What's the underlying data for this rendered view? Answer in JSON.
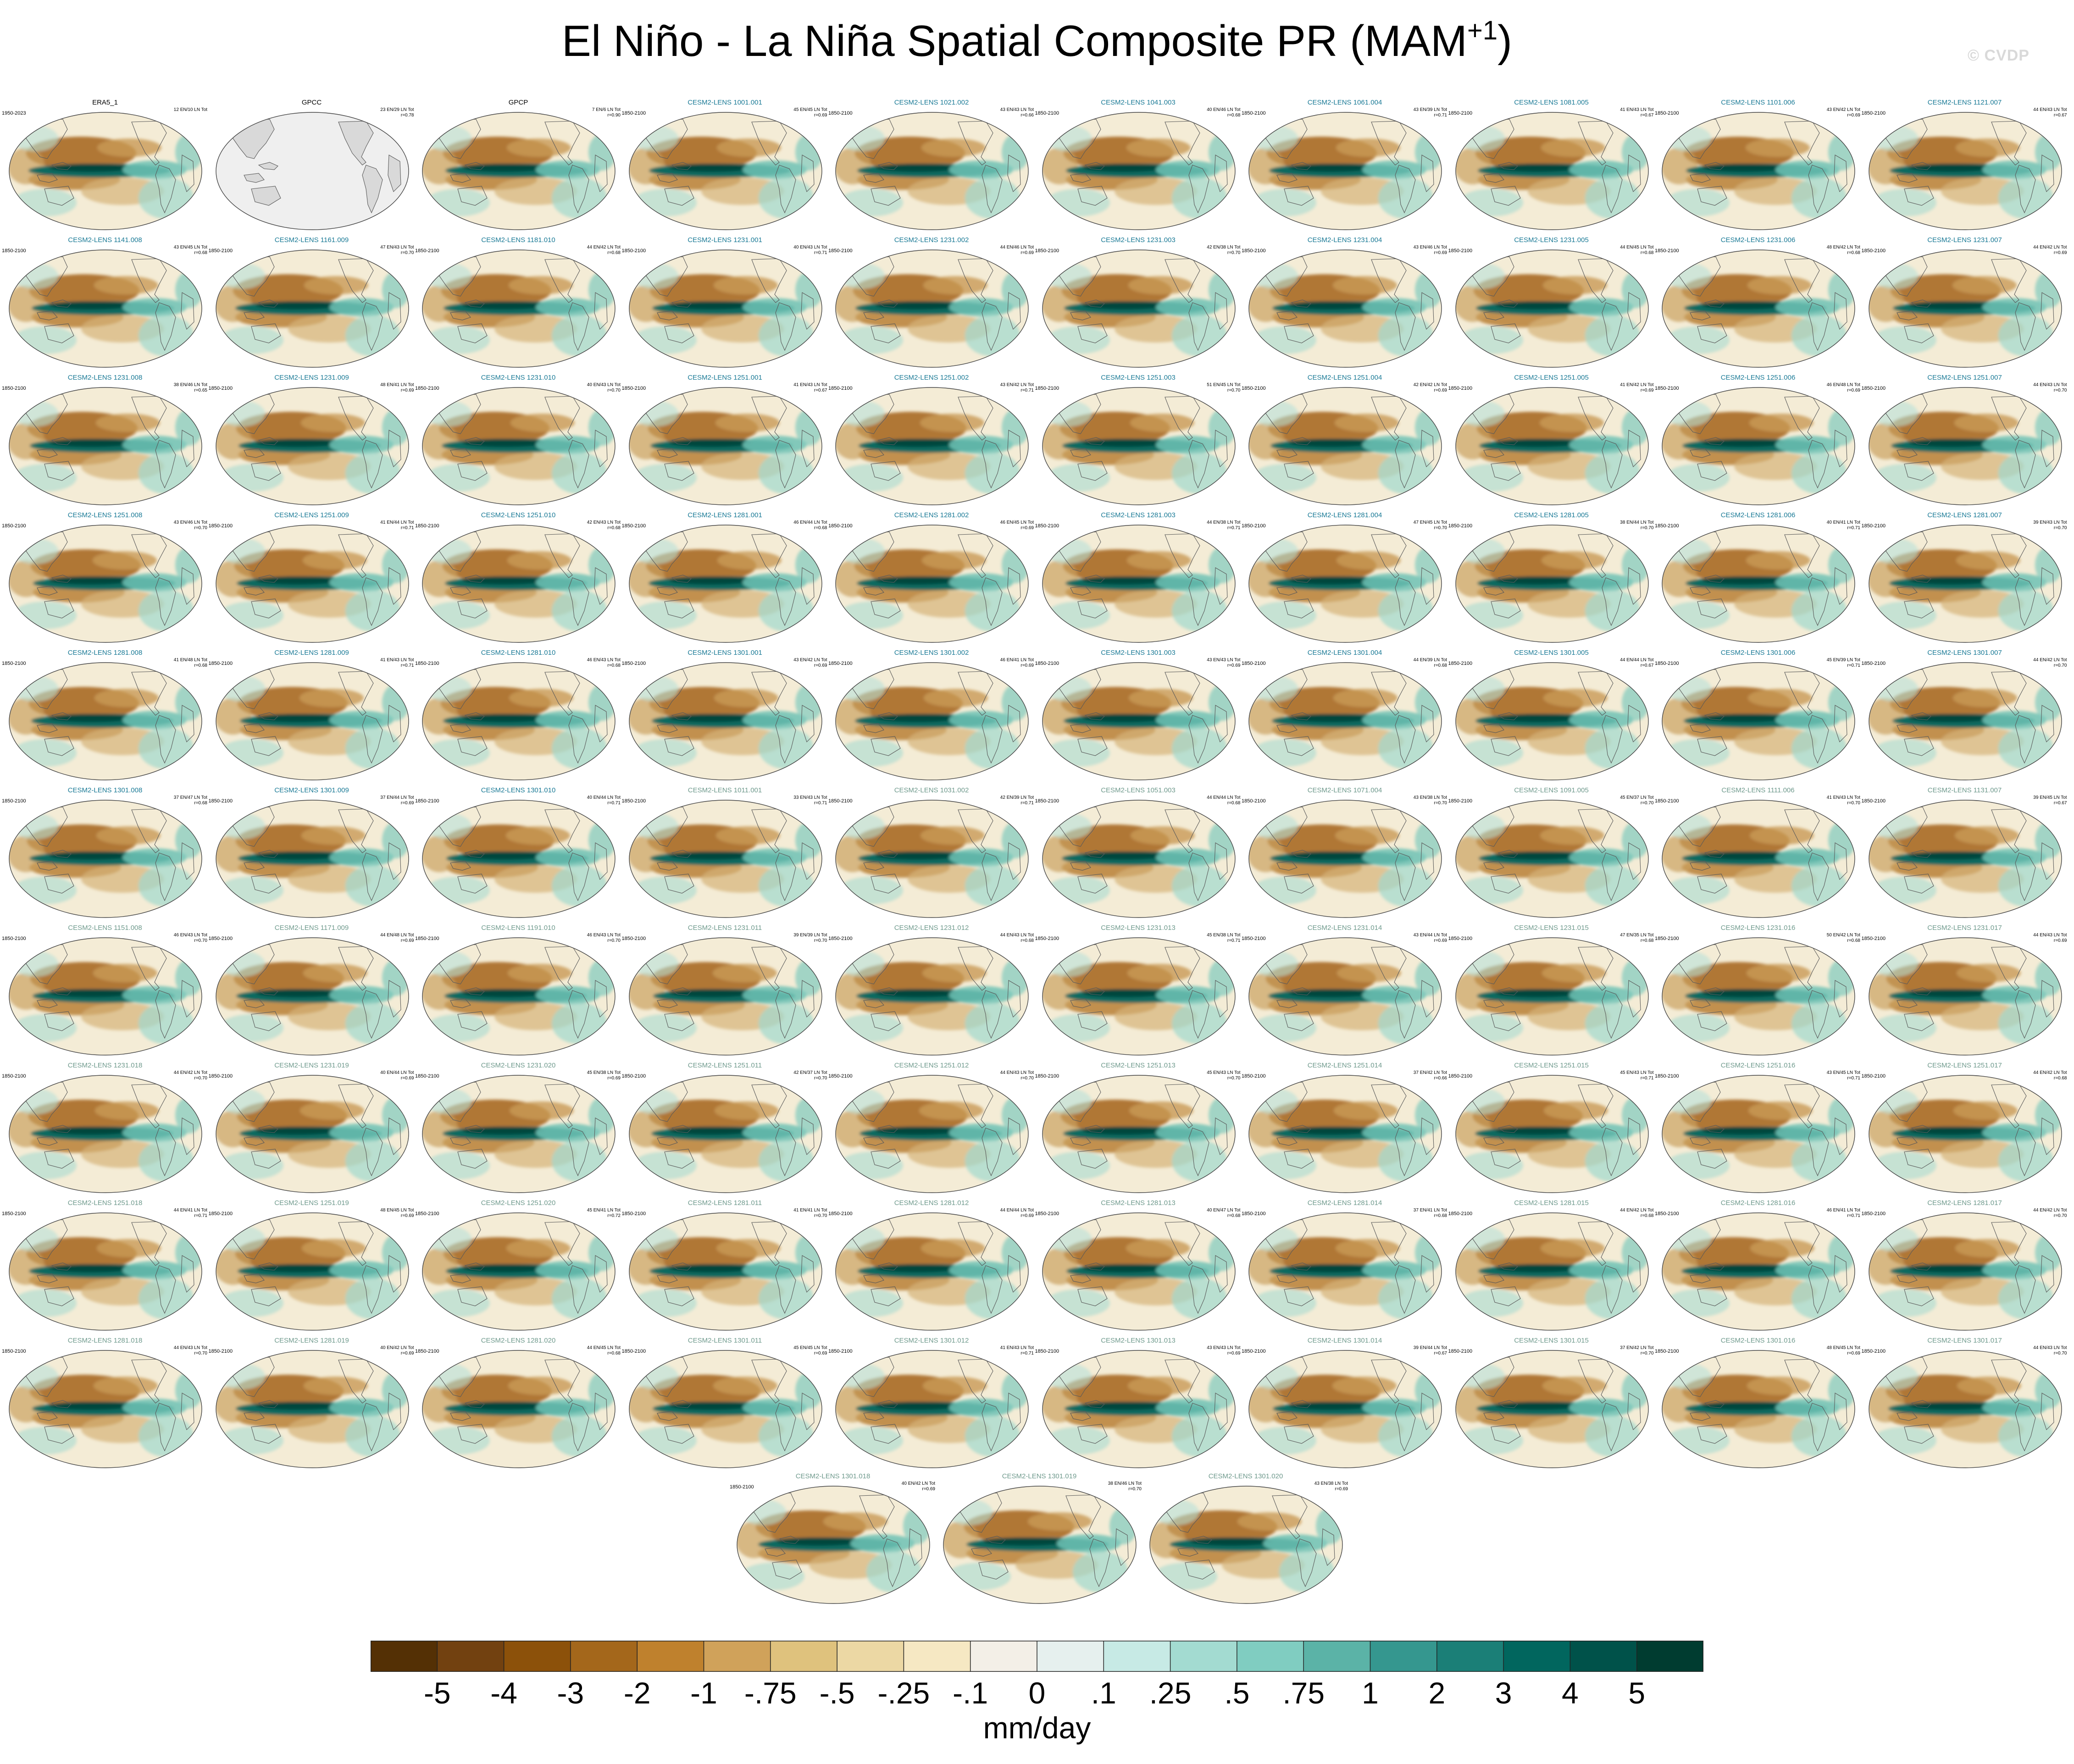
{
  "title": "El Niño - La Niña Spatial Composite PR (MAM",
  "title_superscript": "+1",
  "title_close": ")",
  "watermark": "© CVDP",
  "colors": {
    "ref_label": "#000000",
    "lens1_label": "#1a7a96",
    "lens2_label": "#6f9a8d",
    "land": "#dcdcdc",
    "coast": "#5a5a5a"
  },
  "panels": [
    {
      "name": "ERA5_1",
      "years": "1950-2023",
      "stats": "12 EN/10 LN Tot",
      "r": "",
      "group": "ref"
    },
    {
      "name": "GPCC",
      "years": "",
      "stats": "23 EN/29 LN Tot",
      "r": "r=0.78",
      "group": "ref",
      "empty": true
    },
    {
      "name": "GPCP",
      "years": "",
      "stats": "7 EN/6 LN Tot",
      "r": "r=0.90",
      "group": "ref"
    },
    {
      "name": "CESM2-LENS 1001.001",
      "years": "1850-2100",
      "stats": "45 EN/45 LN Tot",
      "r": "r=0.69",
      "group": "lens1"
    },
    {
      "name": "CESM2-LENS 1021.002",
      "years": "1850-2100",
      "stats": "43 EN/43 LN Tot",
      "r": "r=0.66",
      "group": "lens1"
    },
    {
      "name": "CESM2-LENS 1041.003",
      "years": "1850-2100",
      "stats": "40 EN/46 LN Tot",
      "r": "r=0.68",
      "group": "lens1"
    },
    {
      "name": "CESM2-LENS 1061.004",
      "years": "1850-2100",
      "stats": "43 EN/39 LN Tot",
      "r": "r=0.71",
      "group": "lens1"
    },
    {
      "name": "CESM2-LENS 1081.005",
      "years": "1850-2100",
      "stats": "41 EN/43 LN Tot",
      "r": "r=0.67",
      "group": "lens1"
    },
    {
      "name": "CESM2-LENS 1101.006",
      "years": "1850-2100",
      "stats": "43 EN/42 LN Tot",
      "r": "r=0.69",
      "group": "lens1"
    },
    {
      "name": "CESM2-LENS 1121.007",
      "years": "1850-2100",
      "stats": "44 EN/43 LN Tot",
      "r": "r=0.67",
      "group": "lens1"
    },
    {
      "name": "CESM2-LENS 1141.008",
      "years": "1850-2100",
      "stats": "43 EN/45 LN Tot",
      "r": "r=0.68",
      "group": "lens1"
    },
    {
      "name": "CESM2-LENS 1161.009",
      "years": "1850-2100",
      "stats": "47 EN/43 LN Tot",
      "r": "r=0.70",
      "group": "lens1"
    },
    {
      "name": "CESM2-LENS 1181.010",
      "years": "1850-2100",
      "stats": "44 EN/42 LN Tot",
      "r": "r=0.68",
      "group": "lens1"
    },
    {
      "name": "CESM2-LENS 1231.001",
      "years": "1850-2100",
      "stats": "40 EN/43 LN Tot",
      "r": "r=0.71",
      "group": "lens1"
    },
    {
      "name": "CESM2-LENS 1231.002",
      "years": "1850-2100",
      "stats": "44 EN/46 LN Tot",
      "r": "r=0.69",
      "group": "lens1"
    },
    {
      "name": "CESM2-LENS 1231.003",
      "years": "1850-2100",
      "stats": "42 EN/38 LN Tot",
      "r": "r=0.70",
      "group": "lens1"
    },
    {
      "name": "CESM2-LENS 1231.004",
      "years": "1850-2100",
      "stats": "43 EN/46 LN Tot",
      "r": "r=0.69",
      "group": "lens1"
    },
    {
      "name": "CESM2-LENS 1231.005",
      "years": "1850-2100",
      "stats": "44 EN/45 LN Tot",
      "r": "r=0.68",
      "group": "lens1"
    },
    {
      "name": "CESM2-LENS 1231.006",
      "years": "1850-2100",
      "stats": "48 EN/42 LN Tot",
      "r": "r=0.68",
      "group": "lens1"
    },
    {
      "name": "CESM2-LENS 1231.007",
      "years": "1850-2100",
      "stats": "44 EN/42 LN Tot",
      "r": "r=0.69",
      "group": "lens1"
    },
    {
      "name": "CESM2-LENS 1231.008",
      "years": "1850-2100",
      "stats": "38 EN/46 LN Tot",
      "r": "r=0.65",
      "group": "lens1"
    },
    {
      "name": "CESM2-LENS 1231.009",
      "years": "1850-2100",
      "stats": "48 EN/41 LN Tot",
      "r": "r=0.69",
      "group": "lens1"
    },
    {
      "name": "CESM2-LENS 1231.010",
      "years": "1850-2100",
      "stats": "40 EN/43 LN Tot",
      "r": "r=0.70",
      "group": "lens1"
    },
    {
      "name": "CESM2-LENS 1251.001",
      "years": "1850-2100",
      "stats": "41 EN/43 LN Tot",
      "r": "r=0.67",
      "group": "lens1"
    },
    {
      "name": "CESM2-LENS 1251.002",
      "years": "1850-2100",
      "stats": "43 EN/42 LN Tot",
      "r": "r=0.71",
      "group": "lens1"
    },
    {
      "name": "CESM2-LENS 1251.003",
      "years": "1850-2100",
      "stats": "51 EN/45 LN Tot",
      "r": "r=0.70",
      "group": "lens1"
    },
    {
      "name": "CESM2-LENS 1251.004",
      "years": "1850-2100",
      "stats": "42 EN/42 LN Tot",
      "r": "r=0.69",
      "group": "lens1"
    },
    {
      "name": "CESM2-LENS 1251.005",
      "years": "1850-2100",
      "stats": "41 EN/42 LN Tot",
      "r": "r=0.69",
      "group": "lens1"
    },
    {
      "name": "CESM2-LENS 1251.006",
      "years": "1850-2100",
      "stats": "46 EN/48 LN Tot",
      "r": "r=0.69",
      "group": "lens1"
    },
    {
      "name": "CESM2-LENS 1251.007",
      "years": "1850-2100",
      "stats": "44 EN/43 LN Tot",
      "r": "r=0.70",
      "group": "lens1"
    },
    {
      "name": "CESM2-LENS 1251.008",
      "years": "1850-2100",
      "stats": "43 EN/46 LN Tot",
      "r": "r=0.70",
      "group": "lens1"
    },
    {
      "name": "CESM2-LENS 1251.009",
      "years": "1850-2100",
      "stats": "41 EN/44 LN Tot",
      "r": "r=0.71",
      "group": "lens1"
    },
    {
      "name": "CESM2-LENS 1251.010",
      "years": "1850-2100",
      "stats": "42 EN/43 LN Tot",
      "r": "r=0.68",
      "group": "lens1"
    },
    {
      "name": "CESM2-LENS 1281.001",
      "years": "1850-2100",
      "stats": "46 EN/44 LN Tot",
      "r": "r=0.68",
      "group": "lens1"
    },
    {
      "name": "CESM2-LENS 1281.002",
      "years": "1850-2100",
      "stats": "46 EN/45 LN Tot",
      "r": "r=0.69",
      "group": "lens1"
    },
    {
      "name": "CESM2-LENS 1281.003",
      "years": "1850-2100",
      "stats": "44 EN/38 LN Tot",
      "r": "r=0.71",
      "group": "lens1"
    },
    {
      "name": "CESM2-LENS 1281.004",
      "years": "1850-2100",
      "stats": "47 EN/45 LN Tot",
      "r": "r=0.70",
      "group": "lens1"
    },
    {
      "name": "CESM2-LENS 1281.005",
      "years": "1850-2100",
      "stats": "38 EN/44 LN Tot",
      "r": "r=0.70",
      "group": "lens1"
    },
    {
      "name": "CESM2-LENS 1281.006",
      "years": "1850-2100",
      "stats": "40 EN/41 LN Tot",
      "r": "r=0.71",
      "group": "lens1"
    },
    {
      "name": "CESM2-LENS 1281.007",
      "years": "1850-2100",
      "stats": "39 EN/43 LN Tot",
      "r": "r=0.70",
      "group": "lens1"
    },
    {
      "name": "CESM2-LENS 1281.008",
      "years": "1850-2100",
      "stats": "41 EN/48 LN Tot",
      "r": "r=0.68",
      "group": "lens1"
    },
    {
      "name": "CESM2-LENS 1281.009",
      "years": "1850-2100",
      "stats": "41 EN/43 LN Tot",
      "r": "r=0.71",
      "group": "lens1"
    },
    {
      "name": "CESM2-LENS 1281.010",
      "years": "1850-2100",
      "stats": "46 EN/43 LN Tot",
      "r": "r=0.68",
      "group": "lens1"
    },
    {
      "name": "CESM2-LENS 1301.001",
      "years": "1850-2100",
      "stats": "43 EN/42 LN Tot",
      "r": "r=0.69",
      "group": "lens1"
    },
    {
      "name": "CESM2-LENS 1301.002",
      "years": "1850-2100",
      "stats": "46 EN/41 LN Tot",
      "r": "r=0.69",
      "group": "lens1"
    },
    {
      "name": "CESM2-LENS 1301.003",
      "years": "1850-2100",
      "stats": "43 EN/43 LN Tot",
      "r": "r=0.69",
      "group": "lens1"
    },
    {
      "name": "CESM2-LENS 1301.004",
      "years": "1850-2100",
      "stats": "44 EN/39 LN Tot",
      "r": "r=0.68",
      "group": "lens1"
    },
    {
      "name": "CESM2-LENS 1301.005",
      "years": "1850-2100",
      "stats": "44 EN/44 LN Tot",
      "r": "r=0.67",
      "group": "lens1"
    },
    {
      "name": "CESM2-LENS 1301.006",
      "years": "1850-2100",
      "stats": "45 EN/39 LN Tot",
      "r": "r=0.71",
      "group": "lens1"
    },
    {
      "name": "CESM2-LENS 1301.007",
      "years": "1850-2100",
      "stats": "44 EN/42 LN Tot",
      "r": "r=0.70",
      "group": "lens1"
    },
    {
      "name": "CESM2-LENS 1301.008",
      "years": "1850-2100",
      "stats": "37 EN/47 LN Tot",
      "r": "r=0.68",
      "group": "lens1"
    },
    {
      "name": "CESM2-LENS 1301.009",
      "years": "1850-2100",
      "stats": "37 EN/44 LN Tot",
      "r": "r=0.69",
      "group": "lens1"
    },
    {
      "name": "CESM2-LENS 1301.010",
      "years": "1850-2100",
      "stats": "40 EN/44 LN Tot",
      "r": "r=0.71",
      "group": "lens1"
    },
    {
      "name": "CESM2-LENS 1011.001",
      "years": "1850-2100",
      "stats": "33 EN/43 LN Tot",
      "r": "r=0.71",
      "group": "lens2"
    },
    {
      "name": "CESM2-LENS 1031.002",
      "years": "1850-2100",
      "stats": "42 EN/39 LN Tot",
      "r": "r=0.71",
      "group": "lens2"
    },
    {
      "name": "CESM2-LENS 1051.003",
      "years": "1850-2100",
      "stats": "44 EN/44 LN Tot",
      "r": "r=0.68",
      "group": "lens2"
    },
    {
      "name": "CESM2-LENS 1071.004",
      "years": "1850-2100",
      "stats": "43 EN/38 LN Tot",
      "r": "r=0.70",
      "group": "lens2"
    },
    {
      "name": "CESM2-LENS 1091.005",
      "years": "1850-2100",
      "stats": "45 EN/37 LN Tot",
      "r": "r=0.70",
      "group": "lens2"
    },
    {
      "name": "CESM2-LENS 1111.006",
      "years": "1850-2100",
      "stats": "41 EN/43 LN Tot",
      "r": "r=0.70",
      "group": "lens2"
    },
    {
      "name": "CESM2-LENS 1131.007",
      "years": "1850-2100",
      "stats": "39 EN/45 LN Tot",
      "r": "r=0.67",
      "group": "lens2"
    },
    {
      "name": "CESM2-LENS 1151.008",
      "years": "1850-2100",
      "stats": "46 EN/43 LN Tot",
      "r": "r=0.70",
      "group": "lens2"
    },
    {
      "name": "CESM2-LENS 1171.009",
      "years": "1850-2100",
      "stats": "44 EN/48 LN Tot",
      "r": "r=0.69",
      "group": "lens2"
    },
    {
      "name": "CESM2-LENS 1191.010",
      "years": "1850-2100",
      "stats": "46 EN/43 LN Tot",
      "r": "r=0.70",
      "group": "lens2"
    },
    {
      "name": "CESM2-LENS 1231.011",
      "years": "1850-2100",
      "stats": "39 EN/39 LN Tot",
      "r": "r=0.70",
      "group": "lens2"
    },
    {
      "name": "CESM2-LENS 1231.012",
      "years": "1850-2100",
      "stats": "44 EN/43 LN Tot",
      "r": "r=0.68",
      "group": "lens2"
    },
    {
      "name": "CESM2-LENS 1231.013",
      "years": "1850-2100",
      "stats": "45 EN/38 LN Tot",
      "r": "r=0.71",
      "group": "lens2"
    },
    {
      "name": "CESM2-LENS 1231.014",
      "years": "1850-2100",
      "stats": "43 EN/44 LN Tot",
      "r": "r=0.69",
      "group": "lens2"
    },
    {
      "name": "CESM2-LENS 1231.015",
      "years": "1850-2100",
      "stats": "47 EN/35 LN Tot",
      "r": "r=0.68",
      "group": "lens2"
    },
    {
      "name": "CESM2-LENS 1231.016",
      "years": "1850-2100",
      "stats": "50 EN/42 LN Tot",
      "r": "r=0.68",
      "group": "lens2"
    },
    {
      "name": "CESM2-LENS 1231.017",
      "years": "1850-2100",
      "stats": "44 EN/43 LN Tot",
      "r": "r=0.69",
      "group": "lens2"
    },
    {
      "name": "CESM2-LENS 1231.018",
      "years": "1850-2100",
      "stats": "44 EN/42 LN Tot",
      "r": "r=0.70",
      "group": "lens2"
    },
    {
      "name": "CESM2-LENS 1231.019",
      "years": "1850-2100",
      "stats": "40 EN/44 LN Tot",
      "r": "r=0.69",
      "group": "lens2"
    },
    {
      "name": "CESM2-LENS 1231.020",
      "years": "1850-2100",
      "stats": "45 EN/38 LN Tot",
      "r": "r=0.69",
      "group": "lens2"
    },
    {
      "name": "CESM2-LENS 1251.011",
      "years": "1850-2100",
      "stats": "42 EN/37 LN Tot",
      "r": "r=0.70",
      "group": "lens2"
    },
    {
      "name": "CESM2-LENS 1251.012",
      "years": "1850-2100",
      "stats": "44 EN/43 LN Tot",
      "r": "r=0.70",
      "group": "lens2"
    },
    {
      "name": "CESM2-LENS 1251.013",
      "years": "1850-2100",
      "stats": "45 EN/43 LN Tot",
      "r": "r=0.70",
      "group": "lens2"
    },
    {
      "name": "CESM2-LENS 1251.014",
      "years": "1850-2100",
      "stats": "37 EN/42 LN Tot",
      "r": "r=0.66",
      "group": "lens2"
    },
    {
      "name": "CESM2-LENS 1251.015",
      "years": "1850-2100",
      "stats": "45 EN/43 LN Tot",
      "r": "r=0.71",
      "group": "lens2"
    },
    {
      "name": "CESM2-LENS 1251.016",
      "years": "1850-2100",
      "stats": "43 EN/45 LN Tot",
      "r": "r=0.71",
      "group": "lens2"
    },
    {
      "name": "CESM2-LENS 1251.017",
      "years": "1850-2100",
      "stats": "44 EN/42 LN Tot",
      "r": "r=0.68",
      "group": "lens2"
    },
    {
      "name": "CESM2-LENS 1251.018",
      "years": "1850-2100",
      "stats": "44 EN/41 LN Tot",
      "r": "r=0.71",
      "group": "lens2"
    },
    {
      "name": "CESM2-LENS 1251.019",
      "years": "1850-2100",
      "stats": "48 EN/45 LN Tot",
      "r": "r=0.69",
      "group": "lens2"
    },
    {
      "name": "CESM2-LENS 1251.020",
      "years": "1850-2100",
      "stats": "45 EN/41 LN Tot",
      "r": "r=0.72",
      "group": "lens2"
    },
    {
      "name": "CESM2-LENS 1281.011",
      "years": "1850-2100",
      "stats": "41 EN/41 LN Tot",
      "r": "r=0.70",
      "group": "lens2"
    },
    {
      "name": "CESM2-LENS 1281.012",
      "years": "1850-2100",
      "stats": "44 EN/44 LN Tot",
      "r": "r=0.69",
      "group": "lens2"
    },
    {
      "name": "CESM2-LENS 1281.013",
      "years": "1850-2100",
      "stats": "40 EN/47 LN Tot",
      "r": "r=0.68",
      "group": "lens2"
    },
    {
      "name": "CESM2-LENS 1281.014",
      "years": "1850-2100",
      "stats": "37 EN/41 LN Tot",
      "r": "r=0.68",
      "group": "lens2"
    },
    {
      "name": "CESM2-LENS 1281.015",
      "years": "1850-2100",
      "stats": "44 EN/42 LN Tot",
      "r": "r=0.68",
      "group": "lens2"
    },
    {
      "name": "CESM2-LENS 1281.016",
      "years": "1850-2100",
      "stats": "46 EN/41 LN Tot",
      "r": "r=0.71",
      "group": "lens2"
    },
    {
      "name": "CESM2-LENS 1281.017",
      "years": "1850-2100",
      "stats": "44 EN/42 LN Tot",
      "r": "r=0.70",
      "group": "lens2"
    },
    {
      "name": "CESM2-LENS 1281.018",
      "years": "1850-2100",
      "stats": "44 EN/43 LN Tot",
      "r": "r=0.70",
      "group": "lens2"
    },
    {
      "name": "CESM2-LENS 1281.019",
      "years": "1850-2100",
      "stats": "40 EN/42 LN Tot",
      "r": "r=0.69",
      "group": "lens2"
    },
    {
      "name": "CESM2-LENS 1281.020",
      "years": "1850-2100",
      "stats": "44 EN/45 LN Tot",
      "r": "r=0.68",
      "group": "lens2"
    },
    {
      "name": "CESM2-LENS 1301.011",
      "years": "1850-2100",
      "stats": "45 EN/45 LN Tot",
      "r": "r=0.69",
      "group": "lens2"
    },
    {
      "name": "CESM2-LENS 1301.012",
      "years": "1850-2100",
      "stats": "41 EN/43 LN Tot",
      "r": "r=0.71",
      "group": "lens2"
    },
    {
      "name": "CESM2-LENS 1301.013",
      "years": "1850-2100",
      "stats": "43 EN/43 LN Tot",
      "r": "r=0.69",
      "group": "lens2"
    },
    {
      "name": "CESM2-LENS 1301.014",
      "years": "1850-2100",
      "stats": "39 EN/44 LN Tot",
      "r": "r=0.67",
      "group": "lens2"
    },
    {
      "name": "CESM2-LENS 1301.015",
      "years": "1850-2100",
      "stats": "37 EN/42 LN Tot",
      "r": "r=0.70",
      "group": "lens2"
    },
    {
      "name": "CESM2-LENS 1301.016",
      "years": "1850-2100",
      "stats": "48 EN/45 LN Tot",
      "r": "r=0.69",
      "group": "lens2"
    },
    {
      "name": "CESM2-LENS 1301.017",
      "years": "1850-2100",
      "stats": "44 EN/43 LN Tot",
      "r": "r=0.70",
      "group": "lens2"
    },
    {
      "name": "CESM2-LENS 1301.018",
      "years": "1850-2100",
      "stats": "40 EN/42 LN Tot",
      "r": "r=0.69",
      "group": "lens2"
    },
    {
      "name": "CESM2-LENS 1301.019",
      "years": "",
      "stats": "38 EN/46 LN Tot",
      "r": "r=0.70",
      "group": "lens2"
    },
    {
      "name": "CESM2-LENS 1301.020",
      "years": "",
      "stats": "43 EN/38 LN Tot",
      "r": "r=0.69",
      "group": "lens2"
    }
  ],
  "colorbar": {
    "units": "mm/day",
    "labels": [
      "-5",
      "-4",
      "-3",
      "-2",
      "-1",
      "-.75",
      "-.5",
      "-.25",
      "-.1",
      "0",
      ".1",
      ".25",
      ".5",
      ".75",
      "1",
      "2",
      "3",
      "4",
      "5"
    ],
    "colors": [
      "#543005",
      "#724110",
      "#8c510a",
      "#a4671b",
      "#bf812d",
      "#d0a25a",
      "#dfc27d",
      "#ecd8a4",
      "#f6e8c3",
      "#f3efe7",
      "#e6f0ee",
      "#c7eae5",
      "#a3dbd1",
      "#80cdc1",
      "#5bb3a7",
      "#35978f",
      "#1b7f77",
      "#01665e",
      "#00524a",
      "#003c30"
    ]
  }
}
